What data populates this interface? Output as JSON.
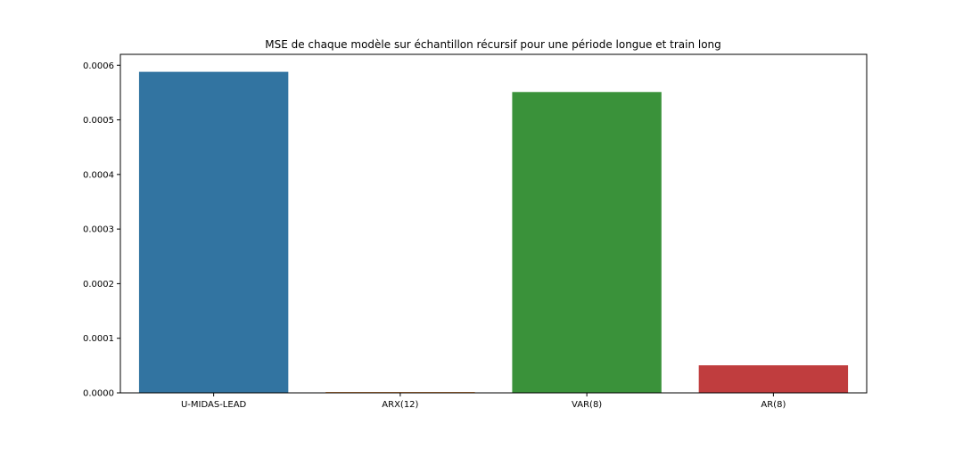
{
  "chart_data": {
    "type": "bar",
    "title": "MSE de chaque modèle sur échantillon récursif pour une période longue et train long",
    "xlabel": "",
    "ylabel": "",
    "categories": [
      "U-MIDAS-LEAD",
      "ARX(12)",
      "VAR(8)",
      "AR(8)"
    ],
    "values": [
      0.000588,
      1.5e-06,
      0.000551,
      5.05e-05
    ],
    "colors": [
      "#3274a1",
      "#e1812c",
      "#3a923a",
      "#c03d3e"
    ],
    "ylim": [
      0,
      0.00062
    ],
    "yticks": [
      0,
      0.0001,
      0.0002,
      0.0003,
      0.0004,
      0.0005,
      0.0006
    ],
    "ytick_labels": [
      "0.0000",
      "0.0001",
      "0.0002",
      "0.0003",
      "0.0004",
      "0.0005",
      "0.0006"
    ],
    "grid": false,
    "legend": "none"
  }
}
